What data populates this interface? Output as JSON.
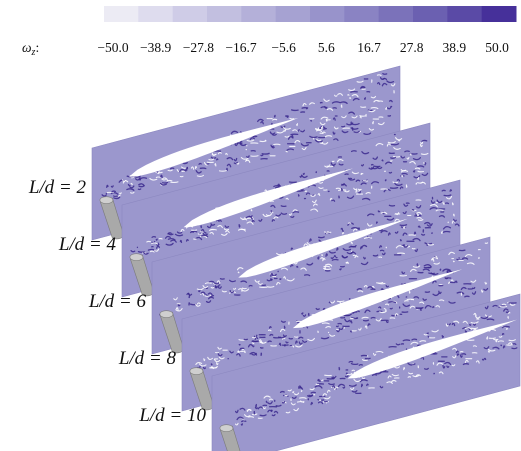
{
  "colorbar": {
    "symbol": "ω",
    "subscript": "z",
    "suffix": ":",
    "ticks": [
      "−50.0",
      "−38.9",
      "−27.8",
      "−16.7",
      "−5.6",
      "5.6",
      "16.7",
      "27.8",
      "38.9",
      "50.0"
    ],
    "colors": [
      "#ecebf4",
      "#dedcee",
      "#cfcce7",
      "#c2bfe0",
      "#b4b0d9",
      "#a6a2d2",
      "#9893cb",
      "#8a83c3",
      "#7b72ba",
      "#6b60b1",
      "#5a4aa6",
      "#46309a"
    ]
  },
  "panels": [
    {
      "label": "L/d = 2"
    },
    {
      "label": "L/d = 4"
    },
    {
      "label": "L/d = 6"
    },
    {
      "label": "L/d = 8"
    },
    {
      "label": "L/d = 10"
    }
  ]
}
